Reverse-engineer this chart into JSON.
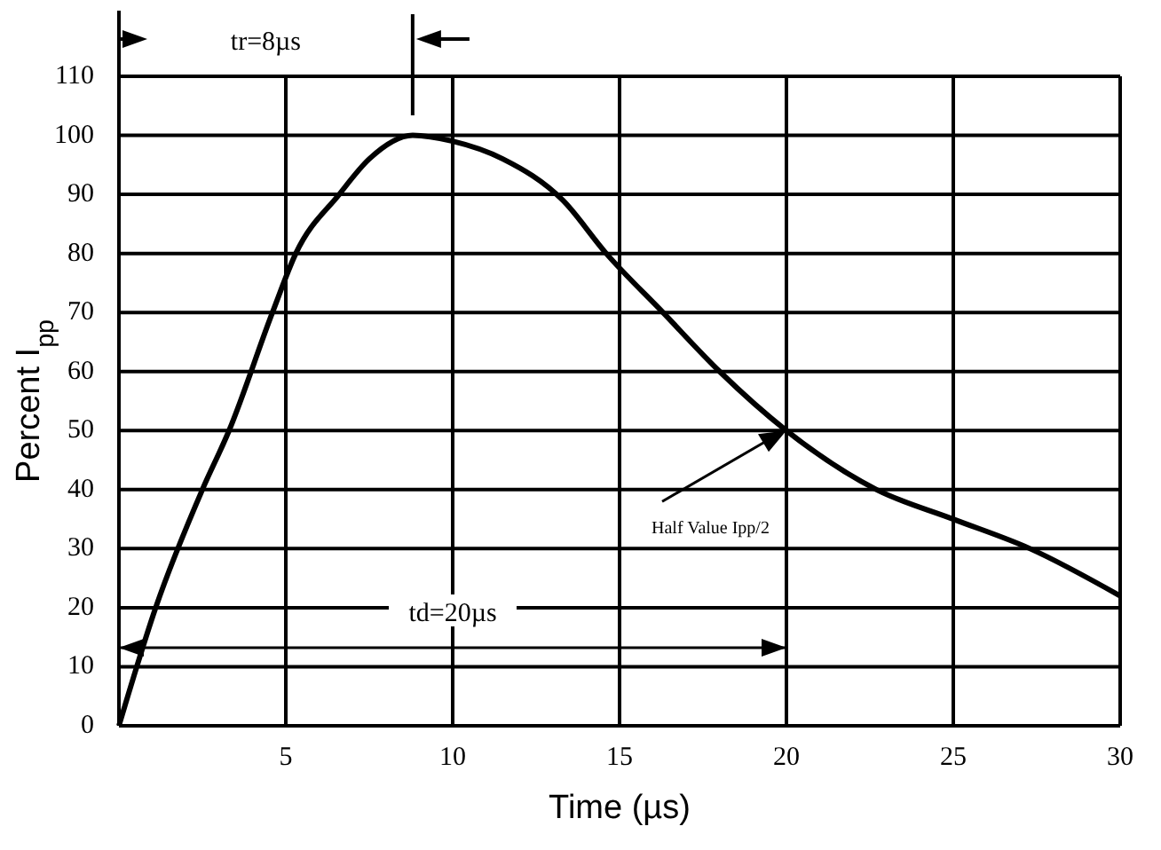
{
  "chart_data": {
    "type": "line",
    "xlabel": "Time (µs)",
    "ylabel": "Percent I$_{pp}$",
    "xlim": [
      0,
      30
    ],
    "xticks": [
      5,
      10,
      15,
      20,
      25,
      30
    ],
    "ylim": [
      0,
      110
    ],
    "yticks": [
      0,
      10,
      20,
      30,
      40,
      50,
      60,
      70,
      80,
      90,
      100,
      110
    ],
    "grid": true,
    "series": [
      {
        "color": "#000000",
        "x": [
          0,
          1.1,
          2.5,
          3.3,
          4.6,
          5.3,
          6.6,
          7.5,
          8.8,
          10,
          11.5,
          13.3,
          14.6,
          16.3,
          18,
          20,
          22.7,
          25,
          27.3,
          30
        ],
        "values": [
          0,
          20,
          40,
          50,
          70,
          80,
          90,
          96,
          100,
          99,
          96,
          89,
          80,
          70,
          60,
          50,
          40,
          35,
          30,
          22
        ]
      }
    ],
    "annotations": [
      "tr=8µs",
      "td=20µs",
      {
        "text": "Half Value Ipp/2",
        "x": 20,
        "y": 50
      }
    ]
  }
}
